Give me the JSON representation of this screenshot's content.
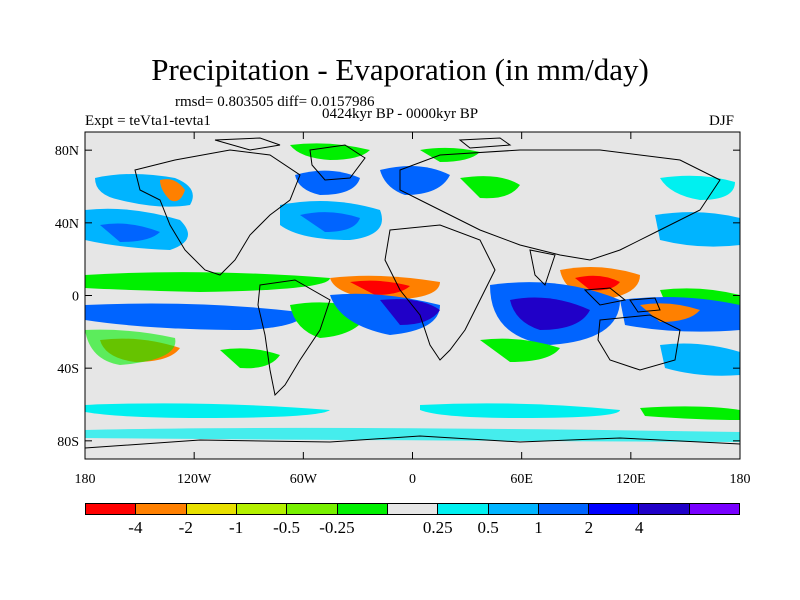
{
  "title": "Precipitation - Evaporation (in mm/day)",
  "stats": "rmsd= 0.803505 diff= 0.0157986",
  "periods": "0424kyr BP - 0000kyr BP",
  "experiment": "Expt = teVta1-tevta1",
  "season": "DJF",
  "y_ticks": [
    {
      "label": "80N",
      "lat": 80
    },
    {
      "label": "40N",
      "lat": 40
    },
    {
      "label": "0",
      "lat": 0
    },
    {
      "label": "40S",
      "lat": -40
    },
    {
      "label": "80S",
      "lat": -80
    }
  ],
  "x_ticks": [
    {
      "label": "180",
      "lon": -180
    },
    {
      "label": "120W",
      "lon": -120
    },
    {
      "label": "60W",
      "lon": -60
    },
    {
      "label": "0",
      "lon": 0
    },
    {
      "label": "60E",
      "lon": 60
    },
    {
      "label": "120E",
      "lon": 120
    },
    {
      "label": "180",
      "lon": 180
    }
  ],
  "colorbar": {
    "colors": [
      "#ff0000",
      "#ff8000",
      "#e8e000",
      "#b4f000",
      "#78f000",
      "#00f000",
      "#e6e6e6",
      "#00f0f0",
      "#00b4ff",
      "#0064ff",
      "#0000ff",
      "#2000c8",
      "#7800ff"
    ],
    "labels": [
      "-4",
      "-2",
      "-1",
      "-0.5",
      "-0.25",
      "0.25",
      "0.5",
      "1",
      "2",
      "4"
    ]
  }
}
